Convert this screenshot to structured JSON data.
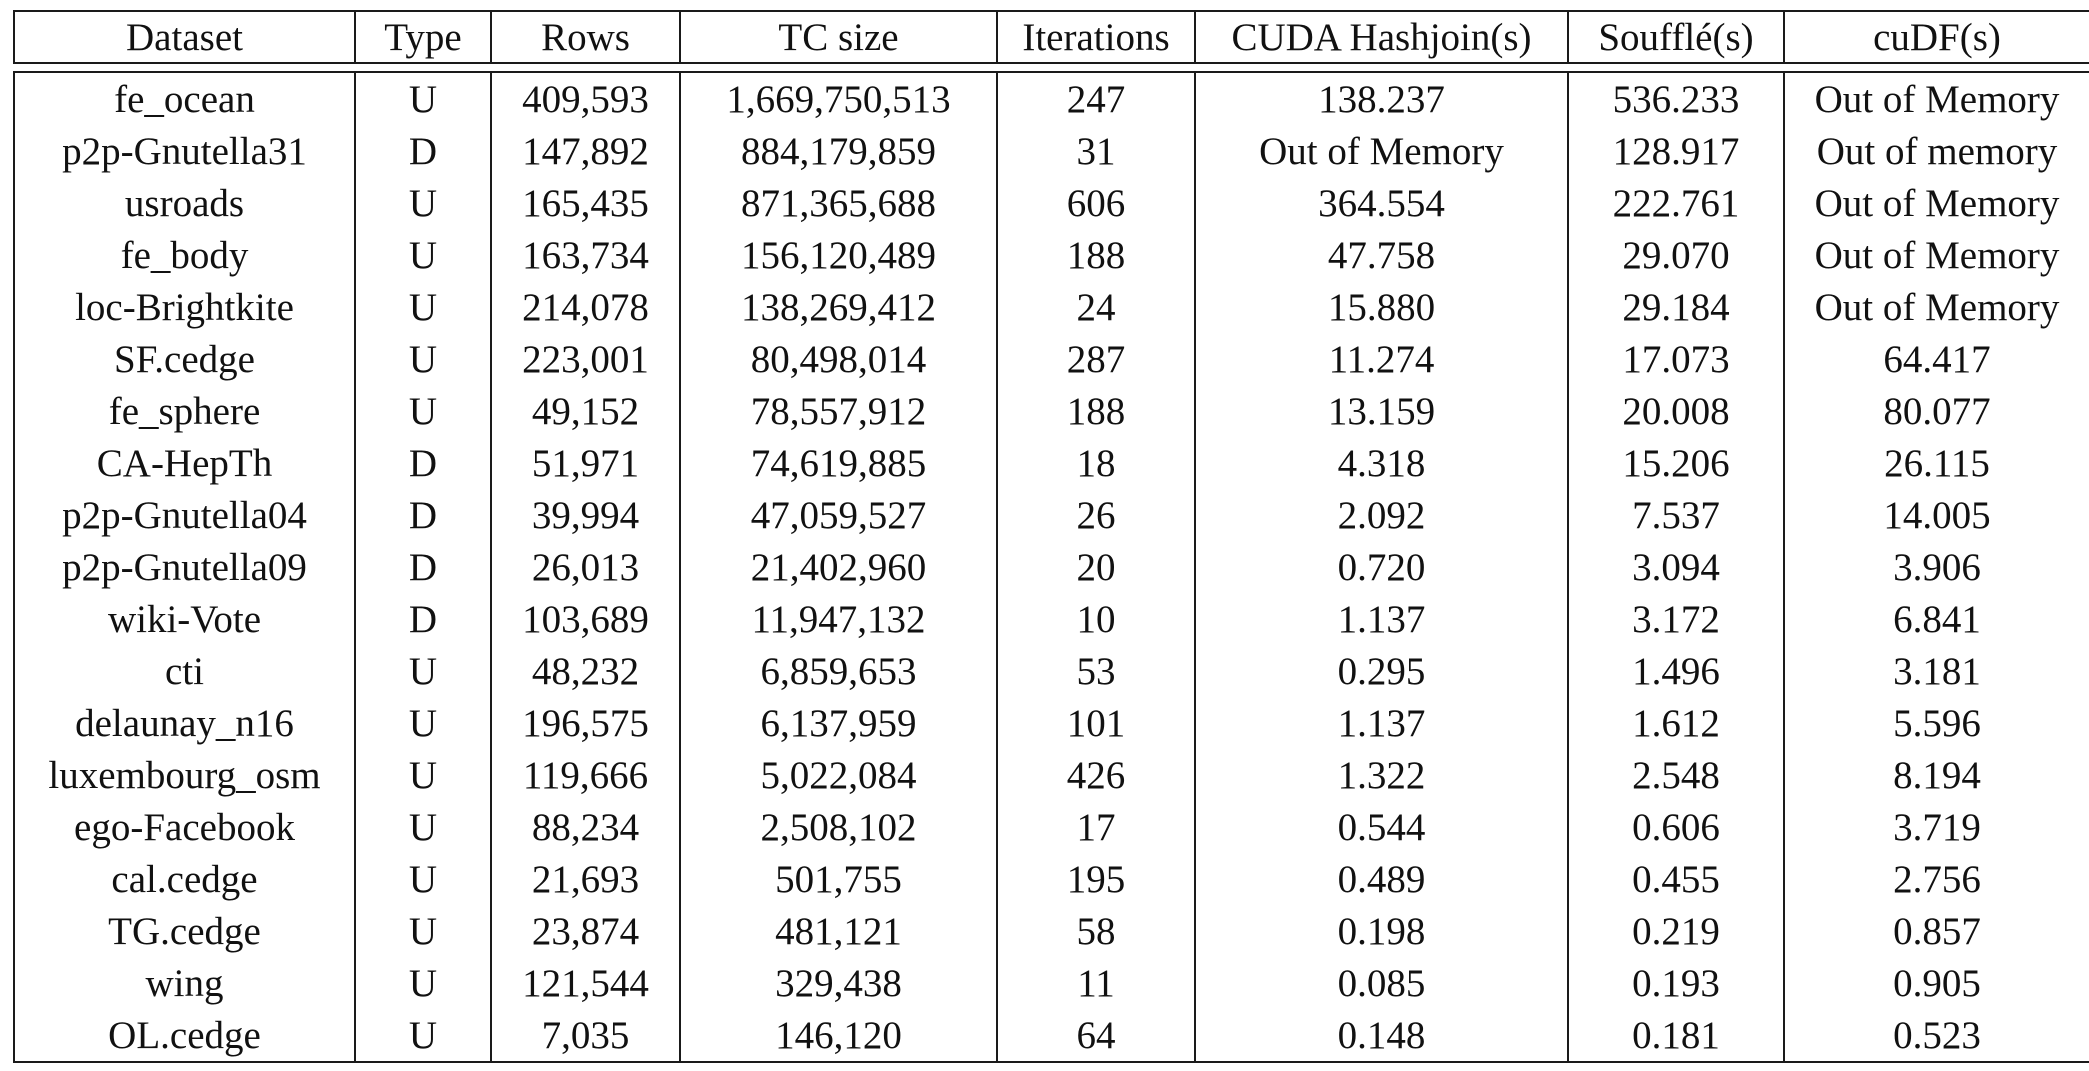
{
  "table": {
    "headers": [
      "Dataset",
      "Type",
      "Rows",
      "TC size",
      "Iterations",
      "CUDA Hashjoin(s)",
      "Soufflé(s)",
      "cuDF(s)"
    ],
    "rows": [
      [
        "fe_ocean",
        "U",
        "409,593",
        "1,669,750,513",
        "247",
        "138.237",
        "536.233",
        "Out of Memory"
      ],
      [
        "p2p-Gnutella31",
        "D",
        "147,892",
        "884,179,859",
        "31",
        "Out of Memory",
        "128.917",
        "Out of memory"
      ],
      [
        "usroads",
        "U",
        "165,435",
        "871,365,688",
        "606",
        "364.554",
        "222.761",
        "Out of Memory"
      ],
      [
        "fe_body",
        "U",
        "163,734",
        "156,120,489",
        "188",
        "47.758",
        "29.070",
        "Out of Memory"
      ],
      [
        "loc-Brightkite",
        "U",
        "214,078",
        "138,269,412",
        "24",
        "15.880",
        "29.184",
        "Out of Memory"
      ],
      [
        "SF.cedge",
        "U",
        "223,001",
        "80,498,014",
        "287",
        "11.274",
        "17.073",
        "64.417"
      ],
      [
        "fe_sphere",
        "U",
        "49,152",
        "78,557,912",
        "188",
        "13.159",
        "20.008",
        "80.077"
      ],
      [
        "CA-HepTh",
        "D",
        "51,971",
        "74,619,885",
        "18",
        "4.318",
        "15.206",
        "26.115"
      ],
      [
        "p2p-Gnutella04",
        "D",
        "39,994",
        "47,059,527",
        "26",
        "2.092",
        "7.537",
        "14.005"
      ],
      [
        "p2p-Gnutella09",
        "D",
        "26,013",
        "21,402,960",
        "20",
        "0.720",
        "3.094",
        "3.906"
      ],
      [
        "wiki-Vote",
        "D",
        "103,689",
        "11,947,132",
        "10",
        "1.137",
        "3.172",
        "6.841"
      ],
      [
        "cti",
        "U",
        "48,232",
        "6,859,653",
        "53",
        "0.295",
        "1.496",
        "3.181"
      ],
      [
        "delaunay_n16",
        "U",
        "196,575",
        "6,137,959",
        "101",
        "1.137",
        "1.612",
        "5.596"
      ],
      [
        "luxembourg_osm",
        "U",
        "119,666",
        "5,022,084",
        "426",
        "1.322",
        "2.548",
        "8.194"
      ],
      [
        "ego-Facebook",
        "U",
        "88,234",
        "2,508,102",
        "17",
        "0.544",
        "0.606",
        "3.719"
      ],
      [
        "cal.cedge",
        "U",
        "21,693",
        "501,755",
        "195",
        "0.489",
        "0.455",
        "2.756"
      ],
      [
        "TG.cedge",
        "U",
        "23,874",
        "481,121",
        "58",
        "0.198",
        "0.219",
        "0.857"
      ],
      [
        "wing",
        "U",
        "121,544",
        "329,438",
        "11",
        "0.085",
        "0.193",
        "0.905"
      ],
      [
        "OL.cedge",
        "U",
        "7,035",
        "146,120",
        "64",
        "0.148",
        "0.181",
        "0.523"
      ]
    ]
  }
}
